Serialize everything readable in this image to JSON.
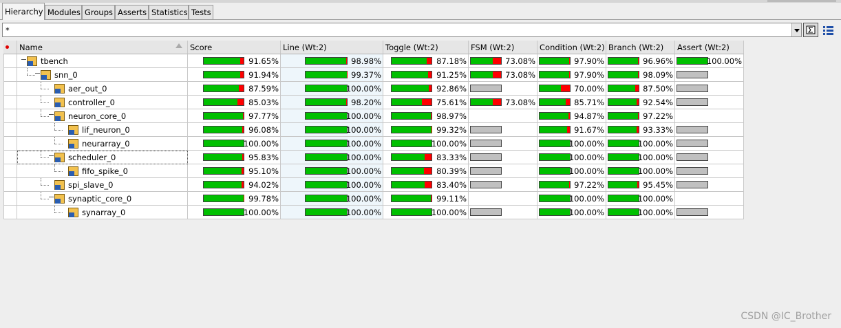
{
  "tabs": [
    "Hierarchy",
    "Modules",
    "Groups",
    "Asserts",
    "Statistics",
    "Tests"
  ],
  "filter": "*",
  "watermark": "CSDN @IC_Brother",
  "table": {
    "covered_color": "#00c000",
    "uncovered_color": "#ff0000",
    "columns": [
      "Name",
      "Score",
      "Line (Wt:2)",
      "Toggle (Wt:2)",
      "FSM (Wt:2)",
      "Condition (Wt:2)",
      "Branch (Wt:2)",
      "Assert (Wt:2)"
    ],
    "rows": [
      {
        "name": "tbench",
        "depth": 0,
        "cells": [
          "91.65%",
          "98.98%",
          "87.18%",
          "73.08%",
          "97.90%",
          "96.96%",
          "100.00%"
        ]
      },
      {
        "name": "snn_0",
        "depth": 1,
        "cells": [
          "91.94%",
          "99.37%",
          "91.25%",
          "73.08%",
          "97.90%",
          "98.09%",
          {
            "color": "#c0c0c0"
          }
        ]
      },
      {
        "name": "aer_out_0",
        "depth": 2,
        "cells": [
          "87.59%",
          "100.00%",
          "92.86%",
          {
            "color": "#c0c0c0"
          },
          "70.00%",
          "87.50%",
          {
            "color": "#c0c0c0"
          }
        ]
      },
      {
        "name": "controller_0",
        "depth": 2,
        "cells": [
          "85.03%",
          "98.20%",
          "75.61%",
          "73.08%",
          "85.71%",
          "92.54%",
          {
            "color": "#c0c0c0"
          }
        ]
      },
      {
        "name": "neuron_core_0",
        "depth": 2,
        "cells": [
          "97.77%",
          "100.00%",
          "98.97%",
          null,
          "94.87%",
          "97.22%",
          null
        ]
      },
      {
        "name": "lif_neuron_0",
        "depth": 3,
        "cells": [
          "96.08%",
          "100.00%",
          "99.32%",
          {
            "color": "#c0c0c0"
          },
          "91.67%",
          "93.33%",
          {
            "color": "#c0c0c0"
          }
        ]
      },
      {
        "name": "neurarray_0",
        "depth": 3,
        "cells": [
          "100.00%",
          "100.00%",
          "100.00%",
          {
            "color": "#c0c0c0"
          },
          "100.00%",
          "100.00%",
          {
            "color": "#c0c0c0"
          }
        ]
      },
      {
        "name": "scheduler_0",
        "depth": 2,
        "cells": [
          "95.83%",
          "100.00%",
          "83.33%",
          {
            "color": "#c0c0c0"
          },
          "100.00%",
          "100.00%",
          {
            "color": "#c0c0c0"
          }
        ]
      },
      {
        "name": "fifo_spike_0",
        "depth": 3,
        "cells": [
          "95.10%",
          "100.00%",
          "80.39%",
          {
            "color": "#c0c0c0"
          },
          "100.00%",
          "100.00%",
          {
            "color": "#c0c0c0"
          }
        ]
      },
      {
        "name": "spi_slave_0",
        "depth": 2,
        "cells": [
          "94.02%",
          "100.00%",
          "83.40%",
          {
            "color": "#c0c0c0"
          },
          "97.22%",
          "95.45%",
          {
            "color": "#c0c0c0"
          }
        ]
      },
      {
        "name": "synaptic_core_0",
        "depth": 2,
        "cells": [
          "99.78%",
          "100.00%",
          "99.11%",
          null,
          "100.00%",
          "100.00%",
          null
        ]
      },
      {
        "name": "synarray_0",
        "depth": 3,
        "cells": [
          "100.00%",
          "100.00%",
          "100.00%",
          {
            "color": "#c0c0c0"
          },
          "100.00%",
          "100.00%",
          {
            "color": "#c0c0c0"
          }
        ]
      }
    ]
  }
}
